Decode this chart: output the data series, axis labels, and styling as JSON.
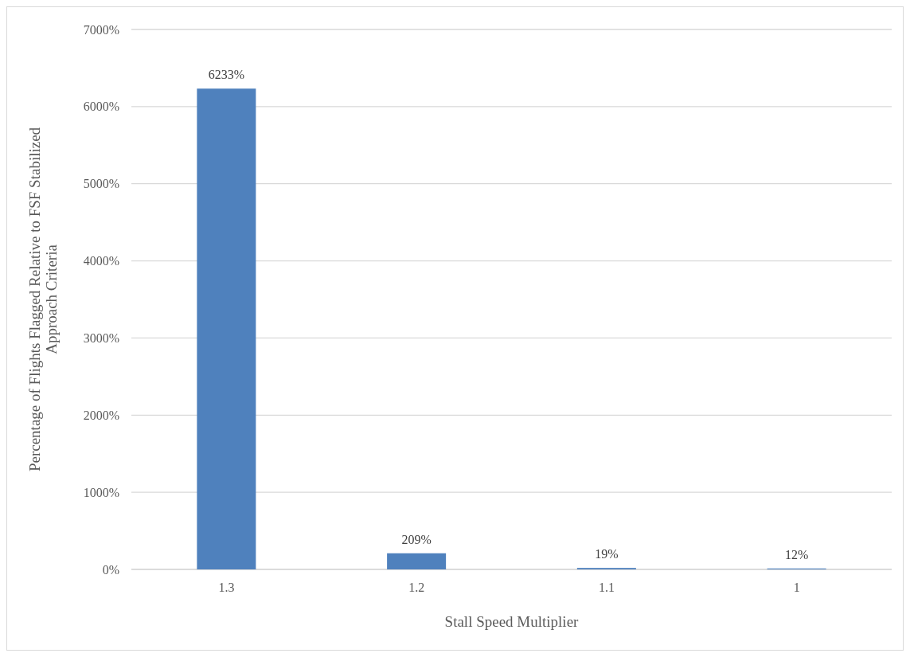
{
  "chart_data": {
    "type": "bar",
    "xlabel": "Stall Speed Multiplier",
    "ylabel": "Percentage of Flights Flagged Relative to FSF Stabilized Approach Criteria",
    "categories": [
      "1.3",
      "1.2",
      "1.1",
      "1"
    ],
    "values": [
      6233,
      209,
      19,
      12
    ],
    "value_labels": [
      "6233%",
      "209%",
      "19%",
      "12%"
    ],
    "color": "#4f81bd",
    "ylim": [
      0,
      7000
    ],
    "yticks": [
      {
        "value": 0,
        "label": "0%"
      },
      {
        "value": 1000,
        "label": "1000%"
      },
      {
        "value": 2000,
        "label": "2000%"
      },
      {
        "value": 3000,
        "label": "3000%"
      },
      {
        "value": 4000,
        "label": "4000%"
      },
      {
        "value": 5000,
        "label": "5000%"
      },
      {
        "value": 6000,
        "label": "6000%"
      },
      {
        "value": 7000,
        "label": "7000%"
      }
    ],
    "grid": "y"
  }
}
